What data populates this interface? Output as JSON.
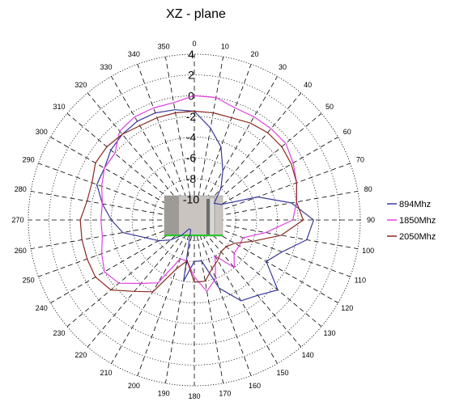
{
  "chart_data": {
    "type": "polar-line",
    "title": "XZ - plane",
    "angle_ticks": [
      0,
      10,
      20,
      30,
      40,
      50,
      60,
      70,
      80,
      90,
      100,
      110,
      120,
      130,
      140,
      150,
      160,
      170,
      180,
      190,
      200,
      210,
      220,
      230,
      240,
      250,
      260,
      270,
      280,
      290,
      300,
      310,
      320,
      330,
      340,
      350
    ],
    "radial_ticks": [
      4,
      2,
      0,
      -2,
      -4,
      -6,
      -8,
      -10
    ],
    "rlim": [
      -12,
      4
    ],
    "angle_zero": "top",
    "angle_direction": "clockwise",
    "grid": true,
    "legend_position": "right",
    "series": [
      {
        "name": "894Mhz",
        "color": "#3a3a9c",
        "angles": [
          0,
          10,
          20,
          30,
          40,
          50,
          60,
          70,
          80,
          90,
          100,
          110,
          120,
          130,
          140,
          150,
          160,
          170,
          180,
          190,
          200,
          210,
          220,
          230,
          240,
          250,
          260,
          270,
          280,
          290,
          300,
          310,
          320,
          330,
          340,
          350
        ],
        "values": [
          -1.5,
          -3,
          -4.5,
          -6.5,
          -8,
          -9.5,
          -9,
          -5.5,
          -2.5,
          -0.5,
          -1,
          -3,
          -4,
          -1.5,
          -2.5,
          -3,
          -5,
          -8,
          -8,
          -6,
          -11,
          -11,
          -10,
          -9,
          -8,
          -7,
          -5,
          -4,
          -3,
          -2,
          -2,
          -1.5,
          -1.2,
          -1,
          -1,
          -1.2
        ]
      },
      {
        "name": "1850Mhz",
        "color": "#e040e0",
        "angles": [
          0,
          10,
          20,
          30,
          40,
          50,
          60,
          70,
          80,
          90,
          100,
          110,
          120,
          130,
          140,
          150,
          160,
          170,
          180,
          190,
          200,
          210,
          220,
          230,
          240,
          250,
          260,
          270,
          280,
          290,
          300,
          310,
          320,
          330,
          340,
          350
        ],
        "values": [
          0,
          0,
          -0.5,
          -0.5,
          -0.5,
          -0.5,
          -1,
          -1.5,
          -2,
          -2.5,
          -5,
          -7,
          -7,
          -7,
          -6,
          -8,
          -6,
          -5,
          -6.5,
          -8,
          -8,
          -5,
          -4,
          -2.5,
          -2,
          -2.5,
          -3,
          -3,
          -3,
          -2.5,
          -2,
          -2,
          -0.8,
          -0.5,
          -0.5,
          -0.5
        ]
      },
      {
        "name": "2050Mhz",
        "color": "#8b2a1f",
        "angles": [
          0,
          10,
          20,
          30,
          40,
          50,
          60,
          70,
          80,
          90,
          100,
          110,
          120,
          130,
          140,
          150,
          160,
          170,
          180,
          190,
          200,
          210,
          220,
          230,
          240,
          250,
          260,
          270,
          280,
          290,
          300,
          310,
          320,
          330,
          340,
          350
        ],
        "values": [
          -1.5,
          -1.5,
          -1.5,
          -1.2,
          -1,
          -1,
          -1.2,
          -1.5,
          -2,
          -1.5,
          -3.5,
          -6,
          -7.5,
          -8,
          -8,
          -7.5,
          -7,
          -6,
          -6,
          -8,
          -7,
          -4,
          -3,
          -1.5,
          -1,
          -1,
          -1,
          -1,
          -1.5,
          -1.5,
          -1,
          -1,
          -1.2,
          -1.5,
          -1.5,
          -1.5
        ]
      }
    ]
  },
  "legend": {
    "items": [
      {
        "label": "894Mhz",
        "color": "#3a3a9c"
      },
      {
        "label": "1850Mhz",
        "color": "#e040e0"
      },
      {
        "label": "2050Mhz",
        "color": "#8b2a1f"
      }
    ]
  }
}
